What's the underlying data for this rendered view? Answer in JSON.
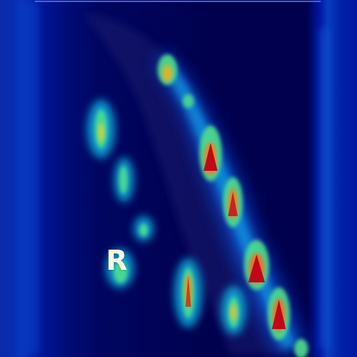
{
  "image": {
    "kind": "heatmap overlay on radiograph",
    "colormap": [
      "#00004e",
      "#0038d8",
      "#00b0e8",
      "#40e0a0",
      "#e8e040",
      "#f08020",
      "#c00018"
    ],
    "background_color": "#00004e"
  },
  "orientation_marker": {
    "label": "R",
    "color": "#fbfbe4"
  }
}
